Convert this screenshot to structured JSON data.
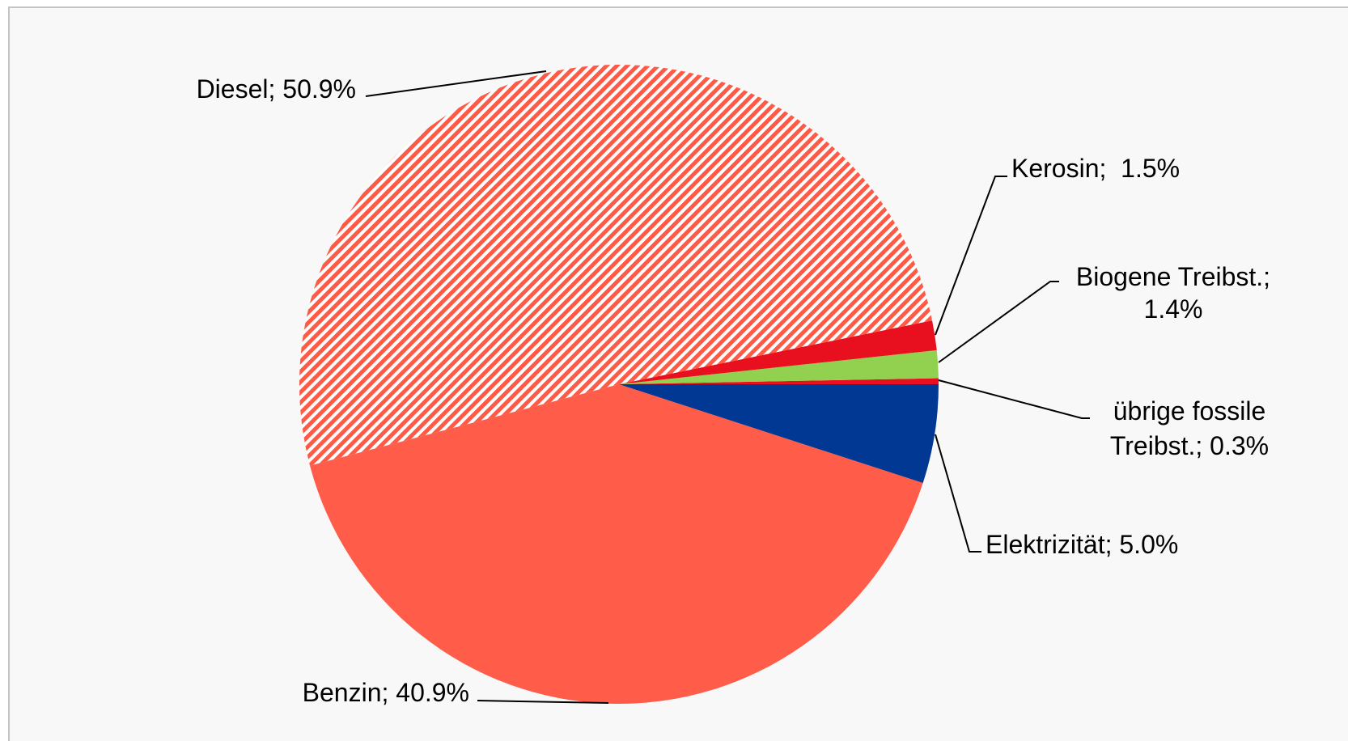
{
  "chart_data": {
    "type": "pie",
    "categories": [
      "übrige fossile Treibst.",
      "Biogene Treibst.",
      "Kerosin",
      "Diesel",
      "Benzin",
      "Elektrizität"
    ],
    "values": [
      0.3,
      1.4,
      1.5,
      50.9,
      40.9,
      5.0
    ],
    "value_labels": [
      "0.3%",
      "1.4%",
      "1.5%",
      "50.9%",
      "40.9%",
      "5.0%"
    ],
    "label_separator": ";",
    "colors": [
      "#e8101e",
      "#92d050",
      "#e8101e",
      "#ff5a46",
      "#ff5c4a",
      "#003894"
    ],
    "hatch": [
      false,
      false,
      false,
      true,
      false,
      false
    ]
  }
}
